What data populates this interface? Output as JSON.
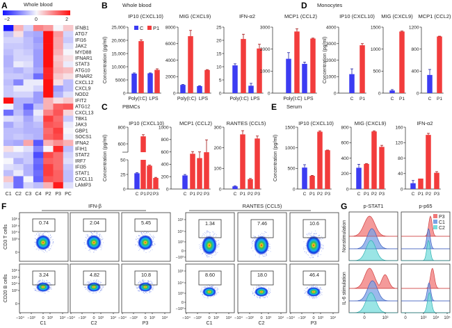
{
  "panels": {
    "A": {
      "label": "A",
      "title": "Whole blood"
    },
    "B": {
      "label": "B",
      "title": "Whole blood"
    },
    "C": {
      "label": "C",
      "title": "PBMCs"
    },
    "D": {
      "label": "D",
      "title": "Monocytes"
    },
    "E": {
      "label": "E",
      "title": "Serum"
    },
    "F": {
      "label": "F"
    },
    "G": {
      "label": "G"
    }
  },
  "colors": {
    "control": "#3c3cf2",
    "patient": "#f23c3c",
    "P3": "#f07878",
    "C1": "#7aa2e6",
    "C2": "#78dcdc"
  },
  "chart_data": [
    {
      "type": "heatmap",
      "columns": [
        "C1",
        "C2",
        "C3",
        "C4",
        "P2",
        "P3",
        "PC"
      ],
      "rows": [
        "IFNB1",
        "ATG7",
        "IFI16",
        "JAK2",
        "MYD88",
        "IFNAR1",
        "STAT3",
        "ATG10",
        "IFNAR2",
        "CXCL12",
        "CXCL9",
        "NOD2",
        "IFIT2",
        "ATG12",
        "CXCL13",
        "TBK1",
        "JAK3",
        "GBP1",
        "SOCS1",
        "IFNA2",
        "IFIH1",
        "STAT2",
        "IRF7",
        "IFI35",
        "STAT1",
        "CXCL11",
        "LAMP3"
      ],
      "values": [
        [
          -2,
          0.6,
          -0.3,
          1.0,
          0.8,
          0,
          0.4
        ],
        [
          -0.5,
          0.2,
          -0.6,
          -0.7,
          2,
          0.8,
          -0.3
        ],
        [
          -0.3,
          -0.3,
          -0.5,
          -0.8,
          2,
          0.7,
          -0.4
        ],
        [
          -0.4,
          -0.4,
          -0.5,
          -0.7,
          2,
          0.7,
          -0.2
        ],
        [
          -0.5,
          -0.3,
          -0.4,
          -0.8,
          2,
          0.6,
          0
        ],
        [
          -0.6,
          -0.3,
          -0.3,
          -0.8,
          2,
          0.4,
          0.2
        ],
        [
          -0.6,
          -0.1,
          -0.2,
          -0.8,
          2,
          0.5,
          -0.1
        ],
        [
          -0.5,
          -0.6,
          -0.4,
          -0.7,
          1.8,
          0.6,
          0.5
        ],
        [
          -0.4,
          -0.4,
          -0.5,
          -1.2,
          1.8,
          0.4,
          0.2
        ],
        [
          -0.5,
          -1.0,
          -0.1,
          -0.1,
          2,
          0.2,
          -0.5
        ],
        [
          -0.4,
          -0.1,
          -0.1,
          -0.3,
          2,
          -0.8,
          -0.5
        ],
        [
          -0.4,
          -0.3,
          -0.3,
          -0.8,
          2,
          -0.6,
          -0.2
        ],
        [
          2,
          -0.6,
          -0.6,
          -0.8,
          0.6,
          0.2,
          0.4
        ],
        [
          0,
          -0.6,
          -1.3,
          -0.5,
          0.6,
          1.3,
          1.4
        ],
        [
          -1.2,
          -0.5,
          -1.0,
          -0.1,
          1.0,
          1.4,
          0.3
        ],
        [
          -0.2,
          -0.3,
          -0.7,
          -0.3,
          1.6,
          1.2,
          -0.4
        ],
        [
          -0.7,
          -0.4,
          -0.6,
          -0.5,
          1.4,
          1.3,
          -0.1
        ],
        [
          -0.5,
          -0.5,
          -0.6,
          -0.6,
          1.2,
          1.6,
          0
        ],
        [
          -0.5,
          -0.4,
          -0.5,
          -0.6,
          1.3,
          1.5,
          -0.1
        ],
        [
          -0.6,
          -0.7,
          0.7,
          -1.4,
          0.6,
          0.9,
          0.6
        ],
        [
          0.2,
          0,
          -0.2,
          -1.0,
          0,
          1.8,
          -0.5
        ],
        [
          -0.3,
          -0.3,
          -0.4,
          -1.5,
          1.5,
          1.2,
          -0.3
        ],
        [
          0,
          -0.6,
          -0.4,
          -1.2,
          1.3,
          1.2,
          -0.2
        ],
        [
          -0.2,
          -0.3,
          -0.6,
          -1.3,
          1.6,
          1.2,
          -0.4
        ],
        [
          -0.5,
          -0.1,
          -0.6,
          -1.2,
          1.6,
          1.3,
          -0.5
        ],
        [
          0.4,
          -1.2,
          0,
          -1.3,
          1.4,
          1.3,
          -0.5
        ],
        [
          -0.2,
          -1.2,
          -0.3,
          -0.5,
          0.6,
          1.9,
          -0.2
        ]
      ],
      "colorbar": {
        "min": -2,
        "max": 2,
        "tick_labels": [
          "−2",
          "0",
          "2"
        ],
        "colors": [
          "#1414ff",
          "#f6f6fb",
          "#ff1010"
        ]
      }
    },
    {
      "type": "bar",
      "title": "IP10 (CXCL10)",
      "ylabel": "Concentration (pg/ml)",
      "categories": [
        "Poly(I:C)",
        "LPS"
      ],
      "series": [
        {
          "name": "C",
          "values": [
            7400,
            7500
          ],
          "errors": [
            250,
            150
          ]
        },
        {
          "name": "P1",
          "values": [
            19700,
            8800
          ],
          "errors": [
            500,
            400
          ]
        }
      ],
      "ylim": [
        0,
        25000
      ],
      "yticks": [
        0,
        5000,
        10000,
        15000,
        20000,
        25000
      ],
      "ytick_labels": [
        "0",
        "5000",
        "10,000",
        "15,000",
        "20,000",
        "25,000"
      ],
      "legend": "top"
    },
    {
      "type": "bar",
      "title": "MIG (CXCL9)",
      "categories": [
        "Poly(I:C)",
        "LPS"
      ],
      "series": [
        {
          "name": "C",
          "values": [
            1000,
            850
          ],
          "errors": [
            50,
            50
          ]
        },
        {
          "name": "P1",
          "values": [
            6900,
            2800
          ],
          "errors": [
            700,
            50
          ]
        }
      ],
      "ylim": [
        0,
        8000
      ],
      "yticks": [
        0,
        2000,
        4000,
        6000,
        8000
      ],
      "ytick_labels": [
        "0",
        "2000",
        "4000",
        "6000",
        "8000"
      ]
    },
    {
      "type": "bar",
      "title": "IFN-α2",
      "categories": [
        "Poly(I:C)",
        "LPS"
      ],
      "series": [
        {
          "name": "C",
          "values": [
            10.5,
            2.8
          ],
          "errors": [
            0.6,
            0.9
          ]
        },
        {
          "name": "P1",
          "values": [
            20.5,
            16.9
          ],
          "errors": [
            1.8,
            1.6
          ]
        }
      ],
      "ylim": [
        0,
        25
      ],
      "yticks": [
        0,
        5,
        10,
        15,
        20,
        25
      ],
      "ytick_labels": [
        "0",
        "5",
        "10",
        "15",
        "20",
        "25"
      ]
    },
    {
      "type": "bar",
      "title": "MCP1 (CCL2)",
      "categories": [
        "Poly(I:C)",
        "LPS"
      ],
      "series": [
        {
          "name": "C",
          "values": [
            1560,
            1330
          ],
          "errors": [
            280,
            80
          ]
        },
        {
          "name": "P1",
          "values": [
            2800,
            2480
          ],
          "errors": [
            120,
            20
          ]
        }
      ],
      "ylim": [
        0,
        3000
      ],
      "yticks": [
        0,
        1000,
        2000,
        3000
      ],
      "ytick_labels": [
        "0",
        "1000",
        "2000",
        "3000"
      ]
    },
    {
      "type": "bar",
      "title": "IP10 (CXCL10)",
      "ylabel": "Concentration (pg/ml)",
      "categories": [
        "C",
        "P1"
      ],
      "values": [
        1150,
        2900
      ],
      "errors": [
        320,
        100
      ],
      "ylim": [
        0,
        4000
      ],
      "yticks": [
        0,
        1000,
        2000,
        3000,
        4000
      ],
      "ytick_labels": [
        "0",
        "1000",
        "2000",
        "3000",
        "4000"
      ]
    },
    {
      "type": "bar",
      "title": "MIG (CXCL9)",
      "categories": [
        "C",
        "P1"
      ],
      "values": [
        60,
        1400
      ],
      "errors": [
        20,
        10
      ],
      "ylim": [
        0,
        1500
      ],
      "yticks": [
        0,
        500,
        1000,
        1500
      ],
      "ytick_labels": [
        "0",
        "500",
        "1000",
        "1500"
      ]
    },
    {
      "type": "bar",
      "title": "MCP1 (CCL2)",
      "categories": [
        "C",
        "P1"
      ],
      "values": [
        330,
        1030
      ],
      "errors": [
        100,
        5
      ],
      "ylim": [
        0,
        1200
      ],
      "yticks": [
        0,
        400,
        800,
        1200
      ],
      "ytick_labels": [
        "0",
        "400",
        "800",
        "1200"
      ]
    },
    {
      "type": "bar",
      "title": "IP10 (CXCL10)",
      "ylabel": "Concentration (pg/ml)",
      "categories": [
        "C",
        "P1",
        "P2",
        "P3"
      ],
      "values": [
        27,
        690,
        40,
        19
      ],
      "errors": [
        1,
        20,
        1,
        1
      ],
      "ylim": [
        0,
        800
      ],
      "axis_break": [
        50,
        500
      ],
      "yticks": [
        0,
        25,
        50,
        600,
        800
      ],
      "ytick_labels": [
        "0",
        "25",
        "50",
        "600",
        "800"
      ]
    },
    {
      "type": "bar",
      "title": "MCP1 (CCL2)",
      "categories": [
        "C",
        "P1",
        "P2",
        "P3"
      ],
      "values": [
        220,
        570,
        500,
        595
      ],
      "errors": [
        15,
        35,
        100,
        200
      ],
      "ylim": [
        0,
        1000
      ],
      "yticks": [
        0,
        200,
        400,
        600,
        800,
        1000
      ],
      "ytick_labels": [
        "0",
        "200",
        "400",
        "600",
        "800",
        "1000"
      ]
    },
    {
      "type": "bar",
      "title": "RANTES (CCL5)",
      "categories": [
        "C",
        "P1",
        "P2",
        "P3"
      ],
      "values": [
        13,
        265,
        48,
        245
      ],
      "errors": [
        2,
        18,
        3,
        12
      ],
      "ylim": [
        0,
        300
      ],
      "yticks": [
        0,
        100,
        200,
        300
      ],
      "ytick_labels": [
        "0",
        "100",
        "200",
        "300"
      ]
    },
    {
      "type": "bar",
      "title": "IP10 (CXCL10)",
      "ylabel": "Concentration (pg/ml)",
      "categories": [
        "C",
        "P1",
        "P2",
        "P3"
      ],
      "values": [
        520,
        320,
        1390,
        940
      ],
      "errors": [
        70,
        10,
        20,
        5
      ],
      "ylim": [
        0,
        1500
      ],
      "yticks": [
        0,
        500,
        1000,
        1500
      ],
      "ytick_labels": [
        "0",
        "500",
        "1000",
        "1500"
      ]
    },
    {
      "type": "bar",
      "title": "MIG (CXCL9)",
      "categories": [
        "C",
        "P1",
        "P2",
        "P3"
      ],
      "values": [
        275,
        325,
        745,
        545
      ],
      "errors": [
        45,
        5,
        8,
        20
      ],
      "ylim": [
        0,
        800
      ],
      "yticks": [
        0,
        200,
        400,
        600,
        800
      ],
      "ytick_labels": [
        "0",
        "200",
        "400",
        "600",
        "800"
      ]
    },
    {
      "type": "bar",
      "title": "IFN-α2",
      "categories": [
        "C",
        "P1",
        "P2",
        "P3"
      ],
      "values": [
        15,
        27,
        140,
        42
      ],
      "errors": [
        7,
        0,
        4,
        3
      ],
      "ylim": [
        0,
        160
      ],
      "yticks": [
        0,
        40,
        80,
        120,
        160
      ],
      "ytick_labels": [
        "0",
        "40",
        "80",
        "120",
        "160"
      ]
    },
    {
      "type": "scatter",
      "title": "IFN-β",
      "row_labels": [
        "CD3 T cells",
        "CD20 B cells"
      ],
      "samples": [
        "C1",
        "C2",
        "P3"
      ],
      "gate_percent": [
        [
          "0.74",
          "2.04",
          "5.45"
        ],
        [
          "3.24",
          "4.82",
          "10.8"
        ]
      ],
      "ytick_labels": [
        "10⁶",
        "10⁵",
        "10⁴",
        "10³",
        "0"
      ],
      "xtick_labels": [
        "−10⁴",
        "−10³",
        "0",
        "10³",
        "10⁴"
      ]
    },
    {
      "type": "scatter",
      "title": "RANTES (CCL5)",
      "samples": [
        "C1",
        "C2",
        "P3"
      ],
      "gate_percent": [
        [
          "1.34",
          "7.46",
          "10.6"
        ],
        [
          "8.60",
          "18.0",
          "46.4"
        ]
      ],
      "ytick_labels": [
        "10⁵",
        "10⁴",
        "10³",
        "0",
        "−10³"
      ],
      "xtick_labels": [
        "−10⁴",
        "−10³",
        "0",
        "10³",
        "10⁴"
      ]
    },
    {
      "type": "area",
      "titles": [
        "p-STAT1",
        "p-p65"
      ],
      "row_labels": [
        "Nonstimulation",
        "IL-6 stimulation"
      ],
      "legend": [
        {
          "name": "P3",
          "color": "#f07878"
        },
        {
          "name": "C1",
          "color": "#7aa2e6"
        },
        {
          "name": "C2",
          "color": "#78dcdc"
        }
      ],
      "legend_position": "top-right",
      "xtick_labels": [
        [
          "0",
          "10³"
        ],
        [
          "0",
          "10³",
          "10⁴",
          "10⁵"
        ]
      ]
    }
  ]
}
